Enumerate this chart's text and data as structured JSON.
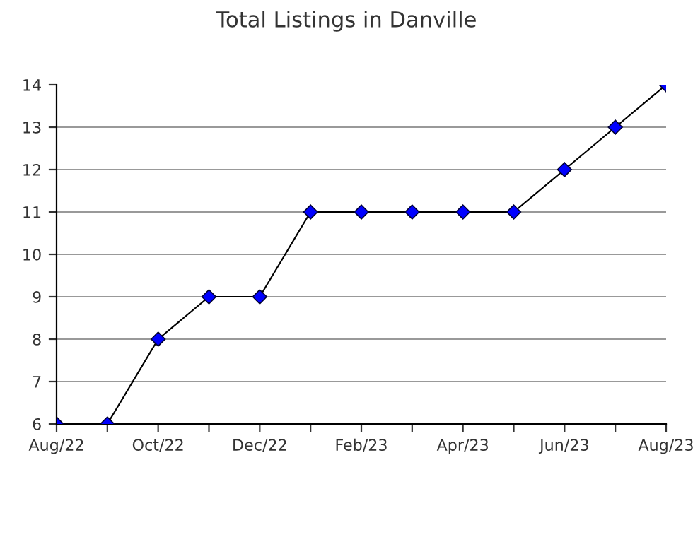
{
  "chart_data": {
    "type": "line",
    "title": "Total Listings in Danville",
    "categories": [
      "Aug/22",
      null,
      "Oct/22",
      null,
      "Dec/22",
      null,
      "Feb/23",
      null,
      "Apr/23",
      null,
      "Jun/23",
      null,
      "Aug/23"
    ],
    "series": [
      {
        "color": "#0000ff",
        "values": [
          6,
          6,
          8,
          9,
          9,
          11,
          11,
          11,
          11,
          11,
          12,
          13,
          14
        ]
      }
    ],
    "ylim": [
      6,
      14
    ],
    "yticks": [
      6,
      7,
      8,
      9,
      10,
      11,
      12,
      13,
      14
    ],
    "grid": "y",
    "marker": "diamond",
    "line_style": "solid",
    "legend": false
  }
}
